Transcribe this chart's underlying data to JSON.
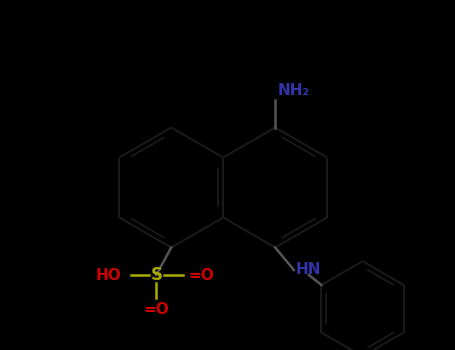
{
  "bg_color": "#000000",
  "bond_color": "#1a1a1a",
  "N_color": "#3333aa",
  "O_color": "#cc0000",
  "S_color": "#aaaa00",
  "label_bond_color": "#555555",
  "figsize": [
    4.55,
    3.5
  ],
  "dpi": 100,
  "nh2_text": "NH₂",
  "hn_text": "HN",
  "ho_text": "HO",
  "s_text": "S",
  "eq_o_text": "=O",
  "o_text": "O"
}
